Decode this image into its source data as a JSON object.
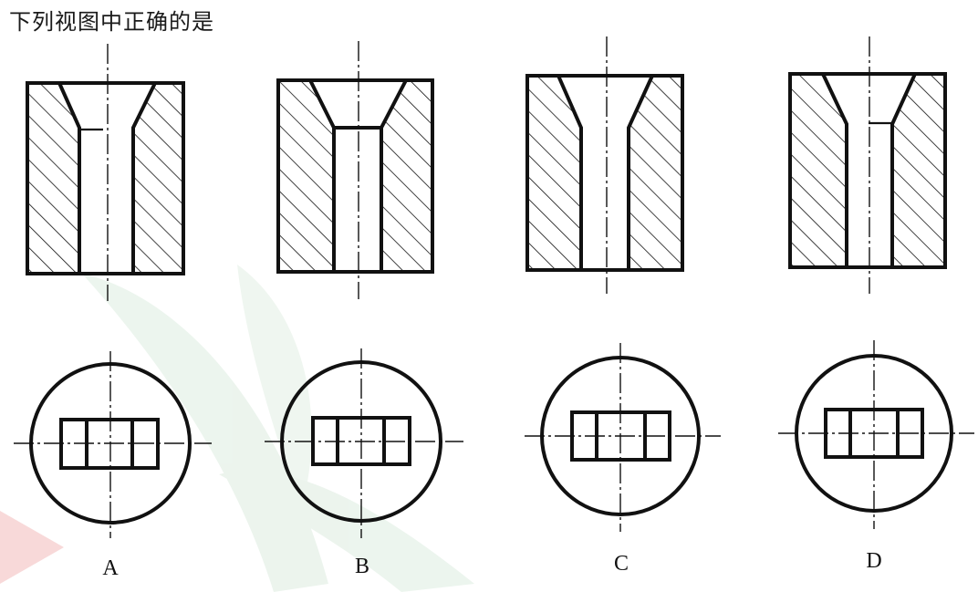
{
  "question": "下列视图中正确的是",
  "options": [
    {
      "label": "A"
    },
    {
      "label": "B"
    },
    {
      "label": "C"
    },
    {
      "label": "D"
    }
  ],
  "colors": {
    "line": "#111111",
    "watermark_green": "#e7f1e9",
    "watermark_red": "#f6d2d2"
  }
}
